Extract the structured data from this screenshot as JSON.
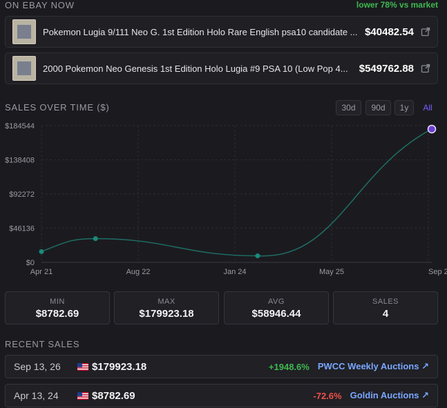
{
  "ebay": {
    "heading": "ON EBAY NOW",
    "badge": "lower 78% vs market",
    "listings": [
      {
        "title": "Pokemon Lugia 9/111 Neo G. 1st Edition Holo Rare English psa10 candidate ...",
        "price": "$40482.54"
      },
      {
        "title": "2000 Pokemon Neo Genesis 1st Edition Holo Lugia #9 PSA 10 (Low Pop 4...",
        "price": "$549762.88"
      }
    ]
  },
  "sales_chart": {
    "heading": "SALES OVER TIME ($)",
    "ranges": [
      "30d",
      "90d",
      "1y",
      "All"
    ],
    "active_range": "All"
  },
  "chart_data": {
    "type": "line",
    "title": "",
    "x_ticks": [
      "Apr 21",
      "Aug 22",
      "Jan 24",
      "May 25",
      "Sep 2"
    ],
    "y_ticks": [
      "$0",
      "$46136",
      "$92272",
      "$138408",
      "$184544"
    ],
    "ylim": [
      0,
      184544
    ],
    "xlim": [
      "2021-04",
      "2026-09"
    ],
    "points": [
      {
        "x": "2021-04",
        "y": 14500
      },
      {
        "x": "2022-01",
        "y": 32000
      },
      {
        "x": "2024-04",
        "y": 8782.69
      },
      {
        "x": "2026-09",
        "y": 179923.18
      }
    ],
    "highlight_last": true,
    "line_color": "#1f6e66",
    "point_color": "#1a8a7a",
    "highlight_color": "#6d3fd6",
    "grid": true
  },
  "stats": [
    {
      "label": "MIN",
      "value": "$8782.69"
    },
    {
      "label": "MAX",
      "value": "$179923.18"
    },
    {
      "label": "AVG",
      "value": "$58946.44"
    },
    {
      "label": "SALES",
      "value": "4"
    }
  ],
  "recent": {
    "heading": "RECENT SALES",
    "rows": [
      {
        "date": "Sep 13, 26",
        "price": "$179923.18",
        "change": "+1948.6%",
        "house": "PWCC Weekly Auctions ↗",
        "positive": true
      },
      {
        "date": "Apr 13, 24",
        "price": "$8782.69",
        "change": "-72.6%",
        "house": "Goldin Auctions ↗",
        "positive": false
      }
    ]
  }
}
